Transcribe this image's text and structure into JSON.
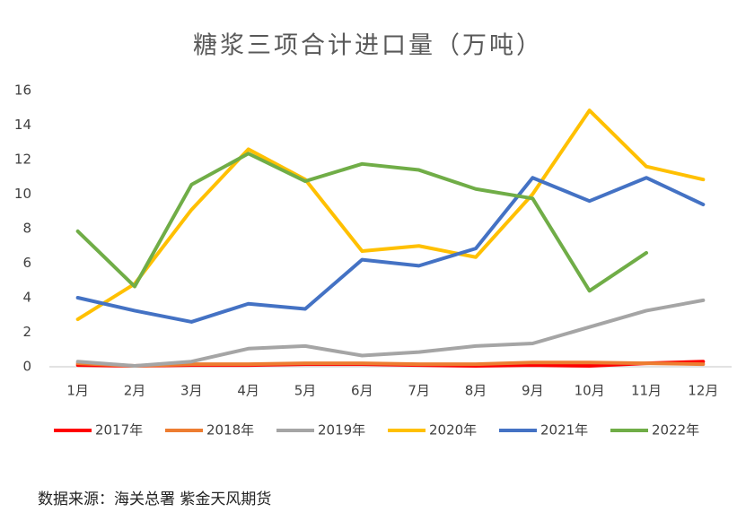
{
  "chart_data": {
    "type": "line",
    "title": "糖浆三项合计进口量（万吨）",
    "categories": [
      "1月",
      "2月",
      "3月",
      "4月",
      "5月",
      "6月",
      "7月",
      "8月",
      "9月",
      "10月",
      "11月",
      "12月"
    ],
    "ylim": [
      0,
      16
    ],
    "yticks": [
      0,
      2,
      4,
      6,
      8,
      10,
      12,
      14,
      16
    ],
    "grid": false,
    "legend": "bottom",
    "series": [
      {
        "name": "2017年",
        "color": "#ff0000",
        "values": [
          0.1,
          0.05,
          0.1,
          0.1,
          0.15,
          0.15,
          0.1,
          0.05,
          0.1,
          0.05,
          0.2,
          0.3
        ]
      },
      {
        "name": "2018年",
        "color": "#ed7d31",
        "values": [
          0.2,
          0.05,
          0.15,
          0.15,
          0.2,
          0.2,
          0.15,
          0.15,
          0.25,
          0.25,
          0.2,
          0.15
        ]
      },
      {
        "name": "2019年",
        "color": "#a5a5a5",
        "values": [
          0.3,
          0.05,
          0.3,
          1.05,
          1.2,
          0.65,
          0.85,
          1.2,
          1.35,
          2.3,
          3.25,
          3.85
        ]
      },
      {
        "name": "2020年",
        "color": "#ffc000",
        "values": [
          2.75,
          4.8,
          9.1,
          12.6,
          10.85,
          6.7,
          7.0,
          6.35,
          10.0,
          14.85,
          11.6,
          10.85
        ]
      },
      {
        "name": "2021年",
        "color": "#4472c4",
        "values": [
          4.0,
          3.25,
          2.6,
          3.65,
          3.35,
          6.2,
          5.85,
          6.85,
          10.95,
          9.6,
          10.95,
          9.4
        ]
      },
      {
        "name": "2022年",
        "color": "#70ad47",
        "values": [
          7.85,
          4.65,
          10.55,
          12.35,
          10.75,
          11.75,
          11.4,
          10.3,
          9.75,
          4.4,
          6.6,
          null
        ]
      }
    ]
  },
  "source": "数据来源：海关总署 紫金天风期货"
}
